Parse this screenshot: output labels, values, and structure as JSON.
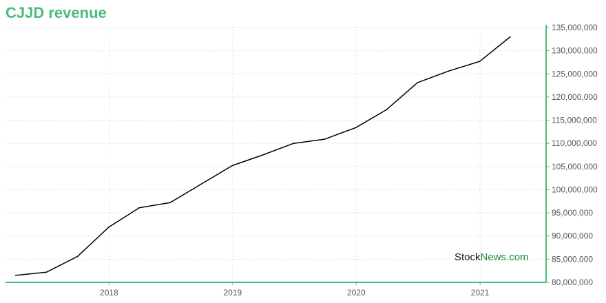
{
  "title": "CJJD revenue",
  "watermark": {
    "part1": "Stock",
    "part2": "News",
    "part3": ".com"
  },
  "colors": {
    "accent": "#4dbb7a",
    "line": "#000000",
    "grid": "#a8dcc0"
  },
  "chart_data": {
    "type": "line",
    "title": "CJJD revenue",
    "xlabel": "",
    "ylabel": "",
    "x_ticks": [
      "2018",
      "2019",
      "2020",
      "2021"
    ],
    "y_ticks": [
      "80,000,000",
      "85,000,000",
      "90,000,000",
      "95,000,000",
      "100,000,000",
      "105,000,000",
      "110,000,000",
      "115,000,000",
      "120,000,000",
      "125,000,000",
      "130,000,000",
      "135,000,000"
    ],
    "ylim": [
      80000000,
      135000000
    ],
    "xlim": [
      "2017-03-01",
      "2021-07-15"
    ],
    "grid": true,
    "series": [
      {
        "x": [
          "2017-03-31",
          "2017-06-30",
          "2017-09-30",
          "2017-12-31",
          "2018-03-31",
          "2018-06-30",
          "2018-09-30",
          "2018-12-31",
          "2019-03-31",
          "2019-06-30",
          "2019-09-30",
          "2019-12-31",
          "2020-03-31",
          "2020-06-30",
          "2020-09-30",
          "2020-12-31",
          "2021-03-31"
        ],
        "values": [
          81500000,
          82200000,
          85600000,
          91900000,
          96100000,
          97200000,
          101200000,
          105200000,
          107500000,
          110000000,
          110900000,
          113400000,
          117300000,
          123100000,
          125600000,
          127700000,
          133000000
        ]
      }
    ]
  }
}
